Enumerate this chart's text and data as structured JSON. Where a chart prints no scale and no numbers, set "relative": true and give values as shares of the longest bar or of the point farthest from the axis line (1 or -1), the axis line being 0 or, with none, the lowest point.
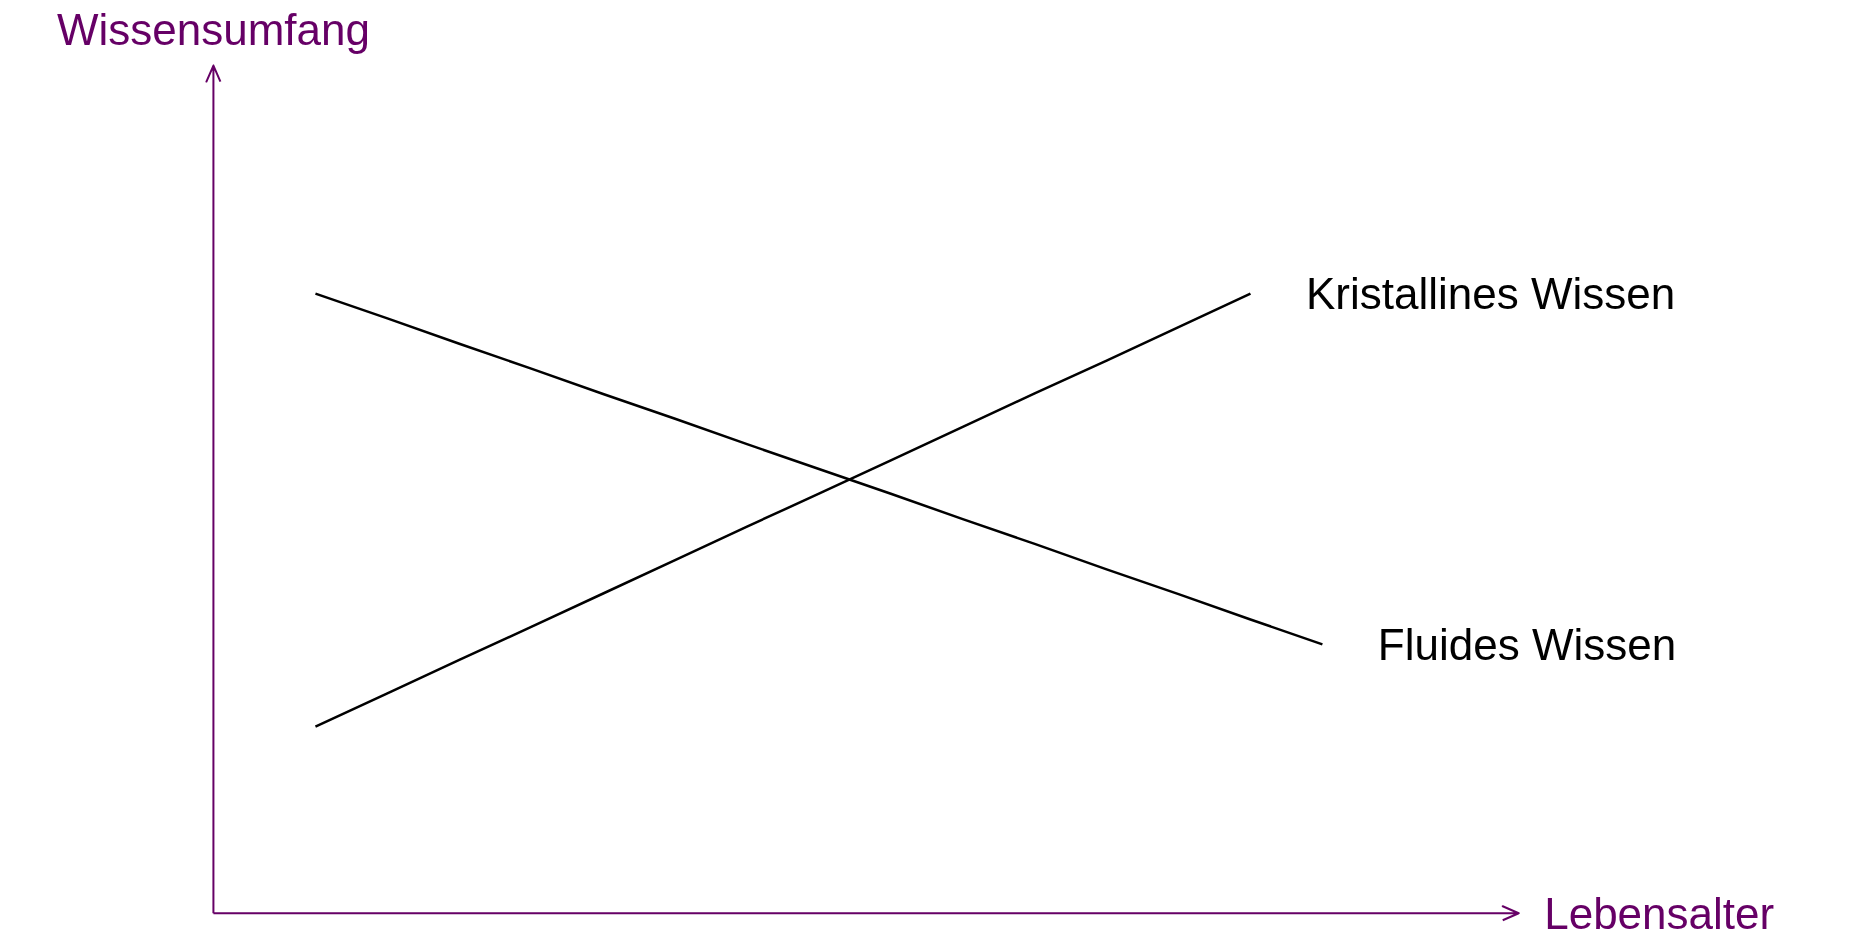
{
  "chart_data": {
    "type": "line",
    "relative": true,
    "xlabel": "Lebensalter",
    "annotations": [
      "Wissensumfang"
    ],
    "grid": false,
    "marker": "none",
    "line_style": "solid",
    "categories": [
      null,
      null,
      null,
      null,
      null,
      null,
      null,
      null,
      null,
      null,
      null,
      null,
      null,
      null,
      null
    ],
    "series": [
      {
        "name": "Kristallines Wissen",
        "color": "#000000",
        "values": [
          0.301,
          0.355,
          0.409,
          0.462,
          0.516,
          0.57,
          0.624,
          0.677,
          0.731,
          0.785,
          0.839,
          0.892,
          0.946,
          1.0,
          null
        ]
      },
      {
        "name": "Fluides Wissen",
        "color": "#000000",
        "values": [
          1.0,
          0.96,
          0.919,
          0.879,
          0.838,
          0.798,
          0.757,
          0.717,
          0.677,
          0.636,
          0.596,
          0.555,
          0.515,
          0.474,
          0.434
        ]
      }
    ]
  }
}
